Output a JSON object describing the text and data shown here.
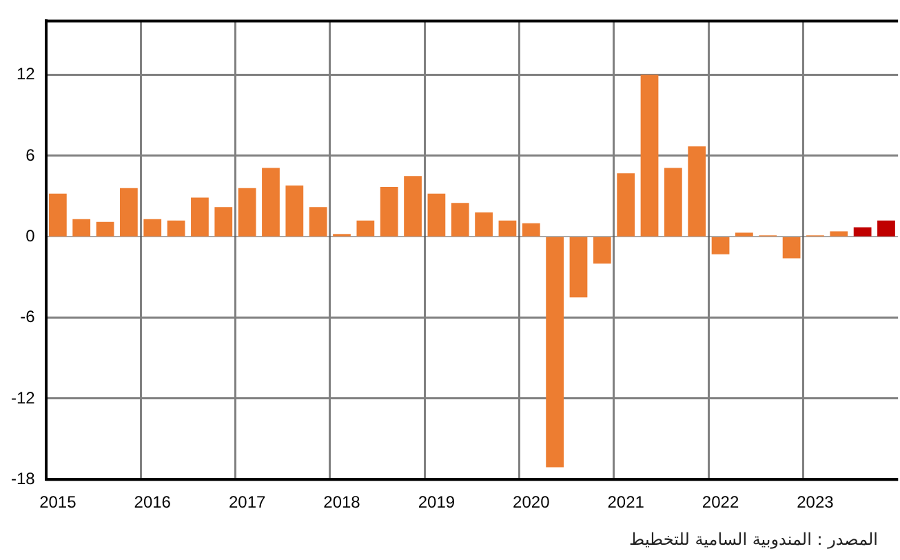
{
  "chart_data": {
    "type": "bar",
    "categories": [
      "2015",
      null,
      null,
      null,
      "2016",
      null,
      null,
      null,
      "2017",
      null,
      null,
      null,
      "2018",
      null,
      null,
      null,
      "2019",
      null,
      null,
      null,
      "2020",
      null,
      null,
      null,
      "2021",
      null,
      null,
      null,
      "2022",
      null,
      null,
      null,
      "2023",
      null,
      null,
      null
    ],
    "values": [
      3.2,
      1.3,
      1.1,
      3.6,
      1.3,
      1.2,
      2.9,
      2.2,
      3.6,
      5.1,
      3.8,
      2.2,
      0.2,
      1.2,
      3.7,
      4.5,
      3.2,
      2.5,
      1.8,
      1.2,
      1.0,
      -17.1,
      -4.5,
      -2.0,
      4.7,
      12.0,
      5.1,
      6.7,
      -1.3,
      0.3,
      0.1,
      -1.6,
      0.1,
      0.4,
      0.7,
      1.2
    ],
    "colors": [
      "#ed7d31",
      "#ed7d31",
      "#ed7d31",
      "#ed7d31",
      "#ed7d31",
      "#ed7d31",
      "#ed7d31",
      "#ed7d31",
      "#ed7d31",
      "#ed7d31",
      "#ed7d31",
      "#ed7d31",
      "#ed7d31",
      "#ed7d31",
      "#ed7d31",
      "#ed7d31",
      "#ed7d31",
      "#ed7d31",
      "#ed7d31",
      "#ed7d31",
      "#ed7d31",
      "#ed7d31",
      "#ed7d31",
      "#ed7d31",
      "#ed7d31",
      "#ed7d31",
      "#ed7d31",
      "#ed7d31",
      "#ed7d31",
      "#ed7d31",
      "#ed7d31",
      "#ed7d31",
      "#ed7d31",
      "#ed7d31",
      "#c00000",
      "#c00000"
    ],
    "ylim": [
      -18,
      16
    ],
    "yticks": [
      -18,
      -12,
      -6,
      0,
      6,
      12
    ],
    "grid": true,
    "annotations": [
      "المصدر : المندوبية السامية للتخطيط"
    ]
  }
}
